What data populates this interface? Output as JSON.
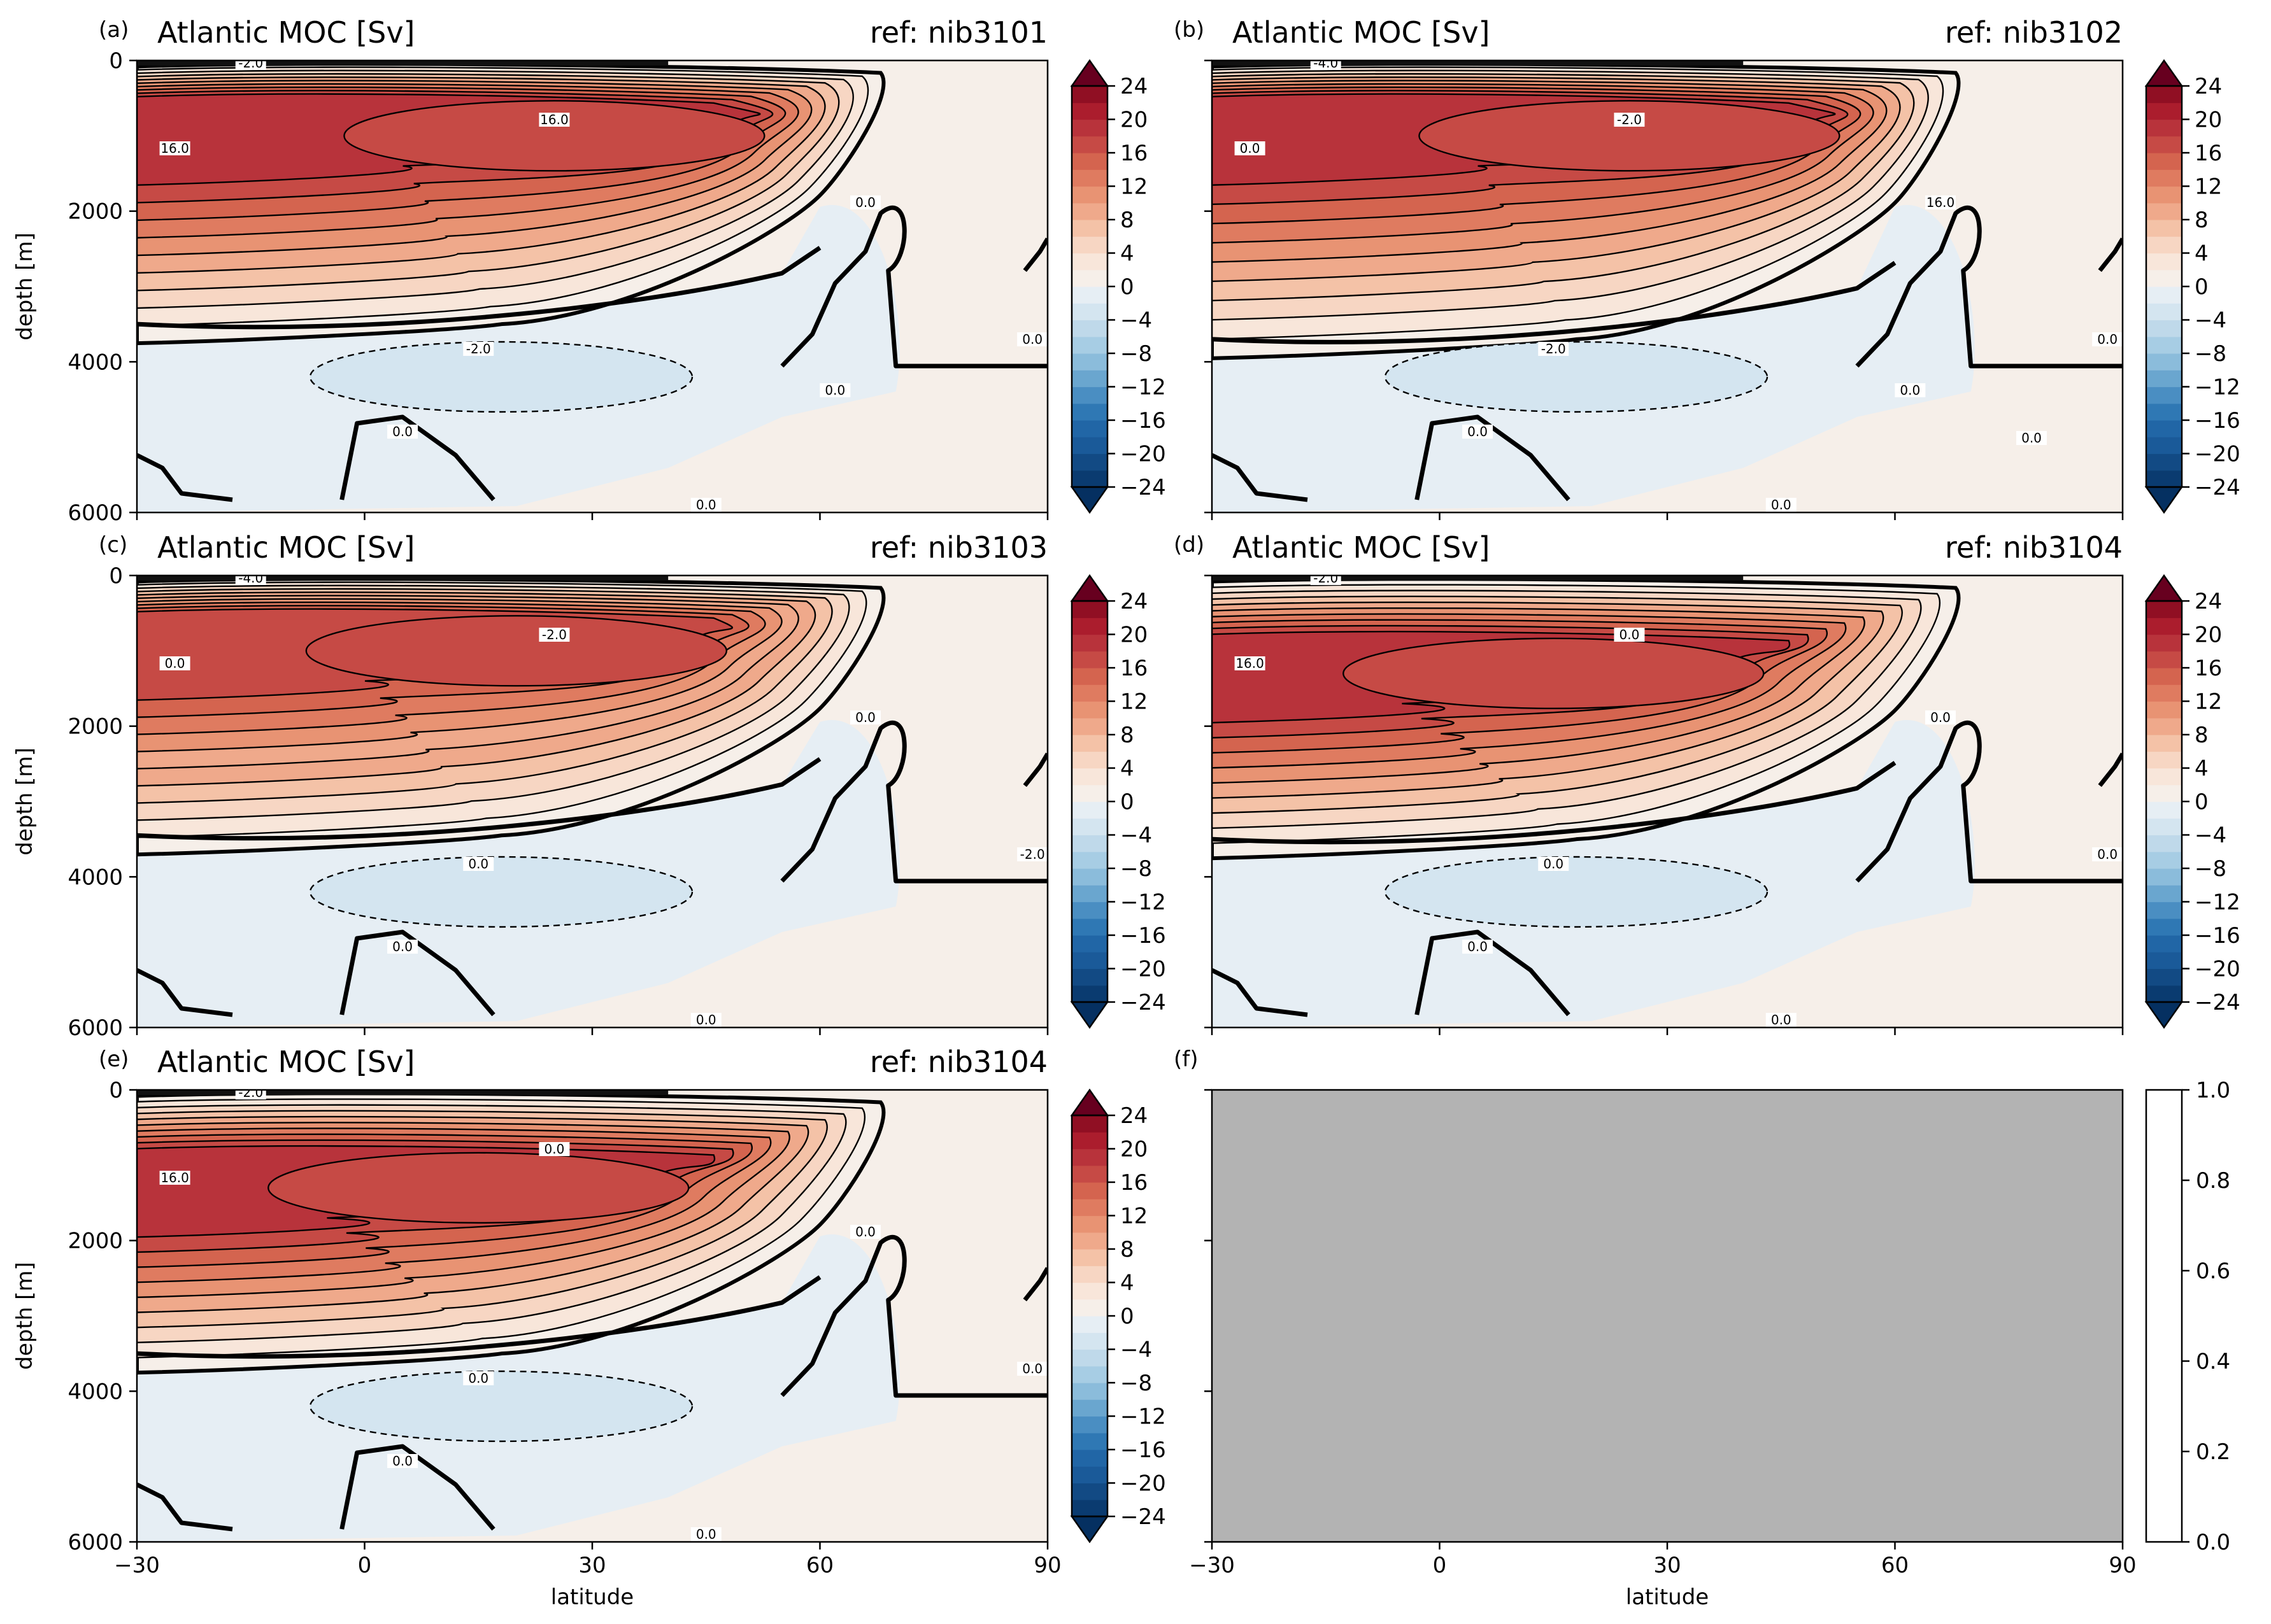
{
  "figure": {
    "xlabel": "latitude",
    "ylabel": "depth [m]",
    "xticks": [
      "−30",
      "0",
      "30",
      "60",
      "90"
    ],
    "yticks": [
      "0",
      "2000",
      "4000",
      "6000"
    ]
  },
  "colorbar": {
    "ticks": [
      "24",
      "20",
      "16",
      "12",
      "8",
      "4",
      "0",
      "−4",
      "−8",
      "−12",
      "−16",
      "−20",
      "−24"
    ],
    "empty_ticks": [
      "1.0",
      "0.8",
      "0.6",
      "0.4",
      "0.2",
      "0.0"
    ]
  },
  "colors": {
    "deep_red": "#ab1d2d",
    "strong_red": "#c64a45",
    "salmon": "#e7917a",
    "pale_peach": "#f4cfb9",
    "near_white_warm": "#f6efe9",
    "pale_blue": "#e6eef4",
    "light_blue": "#bfd7e9",
    "deep_blue": "#124a84",
    "empty_panel": "#b3b3b3"
  },
  "chart_data": [
    {
      "type": "contour",
      "panel": "(a)",
      "title": "Atlantic MOC [Sv]",
      "ref": "ref: nib3101",
      "xlim": [
        -30,
        90
      ],
      "ylim": [
        6000,
        0
      ],
      "levels": [
        -24,
        -22,
        -20,
        -18,
        -16,
        -14,
        -12,
        -10,
        -8,
        -6,
        -4,
        -2,
        0,
        2,
        4,
        6,
        8,
        10,
        12,
        14,
        16,
        18,
        20,
        22,
        24
      ],
      "max_cell_sv": 18,
      "max_cell_latitude": 25,
      "max_cell_depth_m": 1000,
      "zero_line_depth_m": 3500,
      "contour_labels": [
        "-2.0",
        "16.0",
        "16.0",
        "0.0",
        "0.0",
        "0.0",
        "-2.0",
        "0.0",
        "0.0"
      ]
    },
    {
      "type": "contour",
      "panel": "(b)",
      "title": "Atlantic MOC [Sv]",
      "ref": "ref: nib3102",
      "xlim": [
        -30,
        90
      ],
      "ylim": [
        6000,
        0
      ],
      "max_cell_sv": 18,
      "max_cell_latitude": 25,
      "max_cell_depth_m": 1000,
      "zero_line_depth_m": 3700,
      "contour_labels": [
        "-4.0",
        "-2.0",
        "0.0",
        "16.0",
        "0.0",
        "0.0",
        "-2.0",
        "0.0",
        "0.0",
        "0.0"
      ]
    },
    {
      "type": "contour",
      "panel": "(c)",
      "title": "Atlantic MOC [Sv]",
      "ref": "ref: nib3103",
      "xlim": [
        -30,
        90
      ],
      "ylim": [
        6000,
        0
      ],
      "max_cell_sv": 16,
      "max_cell_latitude": 20,
      "max_cell_depth_m": 1000,
      "zero_line_depth_m": 3450,
      "contour_labels": [
        "-4.0",
        "-2.0",
        "0.0",
        "0.0",
        "-2.0",
        "0.0",
        "0.0",
        "0.0"
      ]
    },
    {
      "type": "contour",
      "panel": "(d)",
      "title": "Atlantic MOC [Sv]",
      "ref": "ref: nib3104",
      "xlim": [
        -30,
        90
      ],
      "ylim": [
        6000,
        0
      ],
      "max_cell_sv": 18,
      "max_cell_latitude": 15,
      "max_cell_depth_m": 1300,
      "zero_line_depth_m": 3500,
      "contour_labels": [
        "-2.0",
        "0.0",
        "16.0",
        "0.0",
        "0.0",
        "0.0",
        "0.0",
        "0.0"
      ]
    },
    {
      "type": "contour",
      "panel": "(e)",
      "title": "Atlantic MOC [Sv]",
      "ref": "ref: nib3104",
      "xlim": [
        -30,
        90
      ],
      "ylim": [
        6000,
        0
      ],
      "max_cell_sv": 18,
      "max_cell_latitude": 15,
      "max_cell_depth_m": 1300,
      "zero_line_depth_m": 3500,
      "contour_labels": [
        "-2.0",
        "0.0",
        "16.0",
        "0.0",
        "0.0",
        "0.0",
        "0.0",
        "0.0"
      ]
    },
    {
      "type": "empty",
      "panel": "(f)",
      "xlim": [
        -30,
        90
      ],
      "colorbar_range": [
        0,
        1
      ]
    }
  ]
}
